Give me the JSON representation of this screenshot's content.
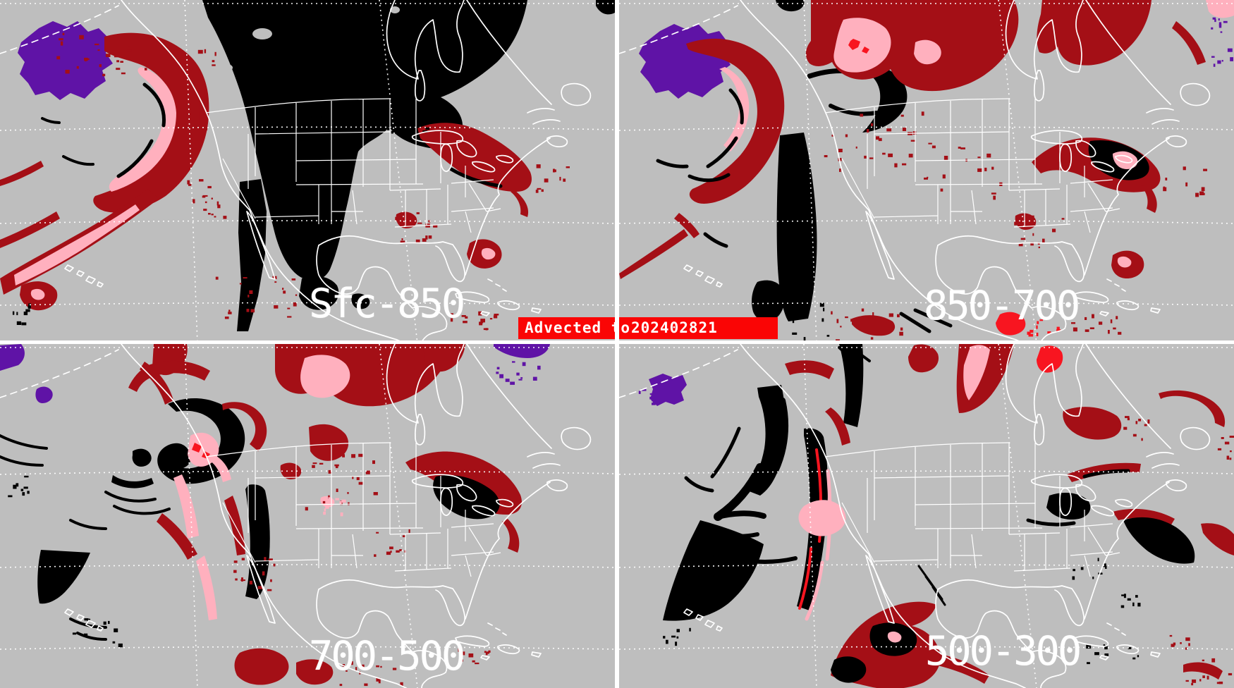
{
  "banner": {
    "label": "Advected to",
    "timestamp": "202402821"
  },
  "panels": [
    {
      "id": "sfc-850",
      "label": "Sfc-850"
    },
    {
      "id": "850-700",
      "label": "850-700"
    },
    {
      "id": "700-500",
      "label": "700-500"
    },
    {
      "id": "500-300",
      "label": "500-300"
    }
  ],
  "colors": {
    "background_gray": "#bebebe",
    "moisture_dark_red": "#a40f16",
    "moisture_pink": "#ffb0be",
    "moisture_bright_red": "#f81520",
    "moisture_purple": "#5f13a6",
    "cloud_black": "#000000",
    "map_outline_white": "#ffffff",
    "banner_red": "#fa0505",
    "label_white": "#ffffff"
  }
}
